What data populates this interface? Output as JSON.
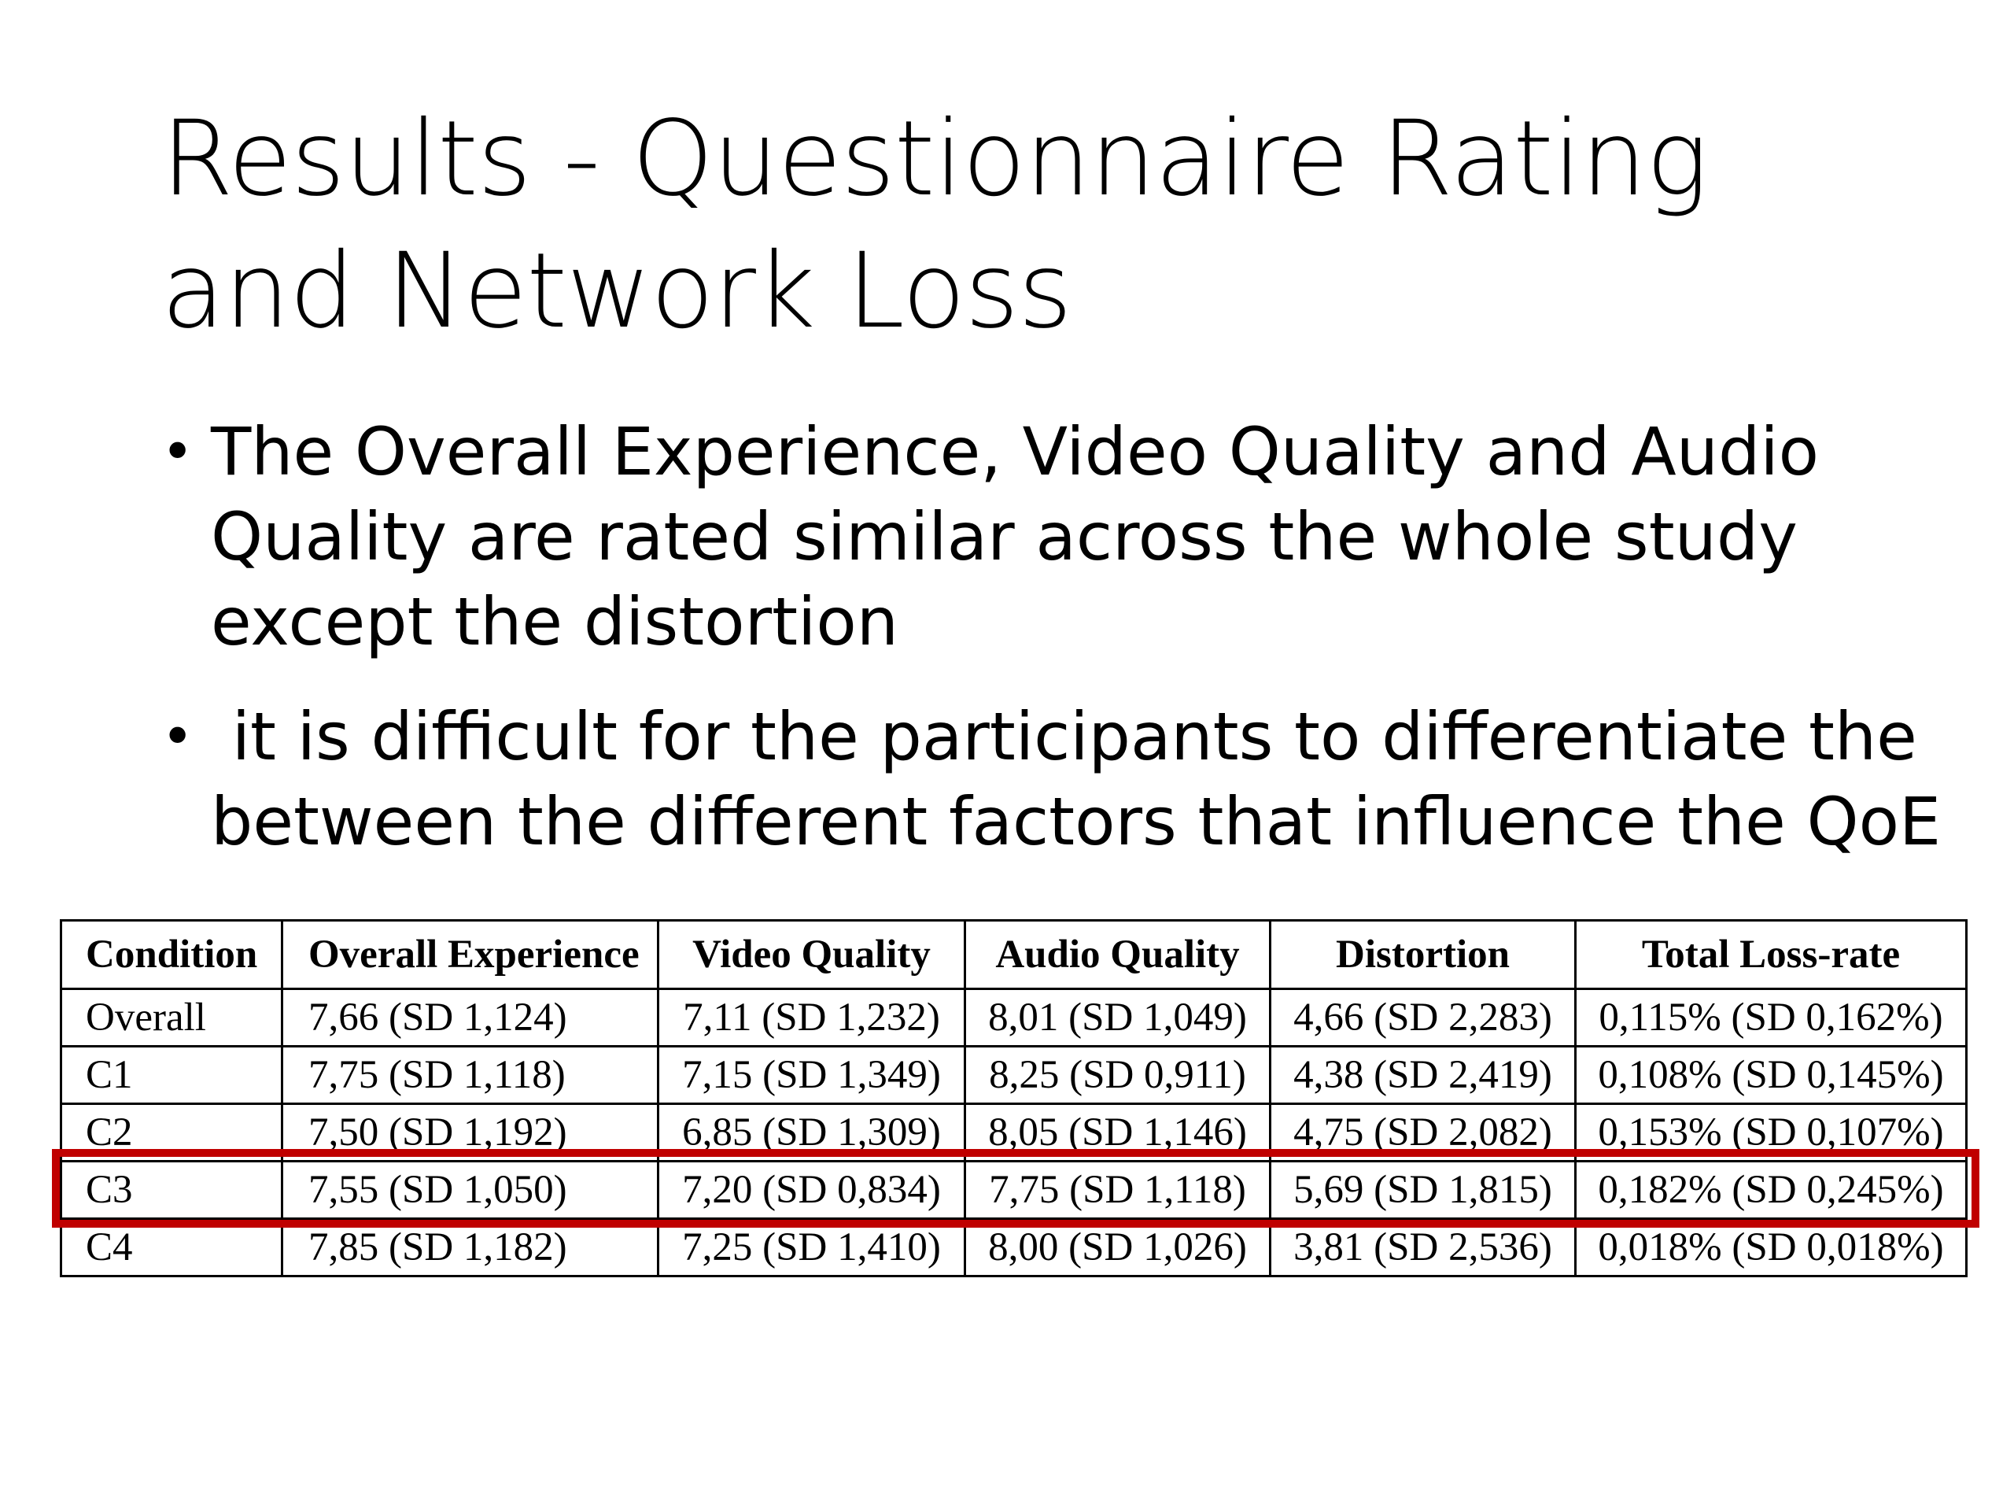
{
  "title": {
    "line1": "Results - Questionnaire Rating",
    "line2": "and Network Loss"
  },
  "bullets": [
    {
      "lines": [
        "The Overall Experience, Video Quality and Audio",
        "Quality are rated similar across the whole study",
        "except the distortion"
      ]
    },
    {
      "lines": [
        " it is difficult for the participants to differentiate the",
        "between the different factors that influence the QoE"
      ]
    }
  ],
  "table": {
    "headers": [
      "Condition",
      "Overall Experience",
      "Video Quality",
      "Audio Quality",
      "Distortion",
      "Total Loss-rate"
    ],
    "rows": [
      [
        "Overall",
        "7,66 (SD 1,124)",
        "7,11 (SD 1,232)",
        "8,01 (SD 1,049)",
        "4,66 (SD 2,283)",
        "0,115% (SD 0,162%)"
      ],
      [
        "C1",
        "7,75 (SD 1,118)",
        "7,15 (SD 1,349)",
        "8,25 (SD 0,911)",
        "4,38 (SD 2,419)",
        "0,108% (SD 0,145%)"
      ],
      [
        "C2",
        "7,50 (SD 1,192)",
        "6,85 (SD 1,309)",
        "8,05 (SD 1,146)",
        "4,75 (SD 2,082)",
        "0,153% (SD 0,107%)"
      ],
      [
        "C3",
        "7,55 (SD 1,050)",
        "7,20 (SD 0,834)",
        "7,75 (SD 1,118)",
        "5,69 (SD 1,815)",
        "0,182% (SD 0,245%)"
      ],
      [
        "C4",
        "7,85 (SD 1,182)",
        "7,25 (SD 1,410)",
        "8,00 (SD 1,026)",
        "3,81 (SD 2,536)",
        "0,018% (SD 0,018%)"
      ]
    ]
  },
  "highlight": {
    "row": "C3",
    "color": "#c00000"
  }
}
